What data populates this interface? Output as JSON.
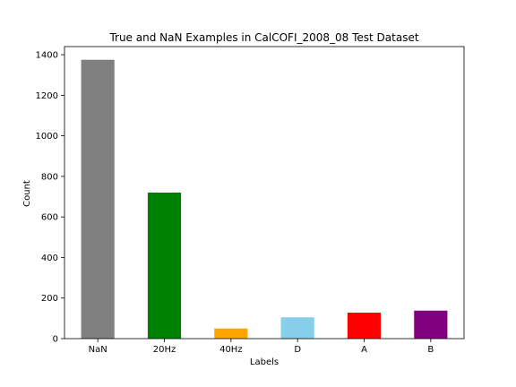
{
  "chart_data": {
    "type": "bar",
    "title": "True and NaN Examples in CalCOFI_2008_08 Test Dataset",
    "xlabel": "Labels",
    "ylabel": "Count",
    "categories": [
      "NaN",
      "20Hz",
      "40Hz",
      "D",
      "A",
      "B"
    ],
    "values": [
      1375,
      720,
      50,
      105,
      128,
      138
    ],
    "colors": [
      "#808080",
      "#008000",
      "#ffa500",
      "#87ceeb",
      "#ff0000",
      "#800080"
    ],
    "ylim": [
      0,
      1440
    ],
    "yticks": [
      0,
      200,
      400,
      600,
      800,
      1000,
      1200,
      1400
    ],
    "grid": false,
    "legend": "none"
  }
}
